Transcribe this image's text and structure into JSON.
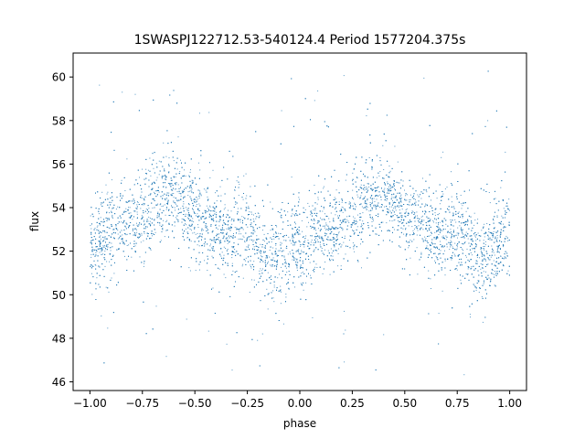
{
  "chart_data": {
    "type": "scatter",
    "title": "1SWASPJ122712.53-540124.4 Period 1577204.375s",
    "xlabel": "phase",
    "ylabel": "flux",
    "xlim": [
      -1.08,
      1.08
    ],
    "ylim": [
      45.6,
      61.1
    ],
    "xticks": [
      -1.0,
      -0.75,
      -0.5,
      -0.25,
      0.0,
      0.25,
      0.5,
      0.75,
      1.0
    ],
    "xtick_labels": [
      "−1.00",
      "−0.75",
      "−0.50",
      "−0.25",
      "0.00",
      "0.25",
      "0.50",
      "0.75",
      "1.00"
    ],
    "yticks": [
      46,
      48,
      50,
      52,
      54,
      56,
      58,
      60
    ],
    "ytick_labels": [
      "46",
      "48",
      "50",
      "52",
      "54",
      "56",
      "58",
      "60"
    ],
    "marker_color": "#1f77b4",
    "grid": false,
    "phase_range": [
      -1.0,
      1.0
    ],
    "repeat_period_in_phase": 1.0,
    "trend": {
      "phase": [
        0.0,
        0.05,
        0.1,
        0.15,
        0.2,
        0.25,
        0.3,
        0.35,
        0.4,
        0.45,
        0.5,
        0.55,
        0.6,
        0.65,
        0.7,
        0.75,
        0.8,
        0.85,
        0.9,
        0.95,
        1.0
      ],
      "flux": [
        51.8,
        52.6,
        53.0,
        53.2,
        53.3,
        53.6,
        54.3,
        54.6,
        54.6,
        54.2,
        53.6,
        53.3,
        53.1,
        52.9,
        52.9,
        52.9,
        52.3,
        51.7,
        52.0,
        52.3,
        52.8
      ]
    },
    "scatter_sd": 1.0,
    "outlier_range": [
      46.3,
      60.3
    ]
  }
}
